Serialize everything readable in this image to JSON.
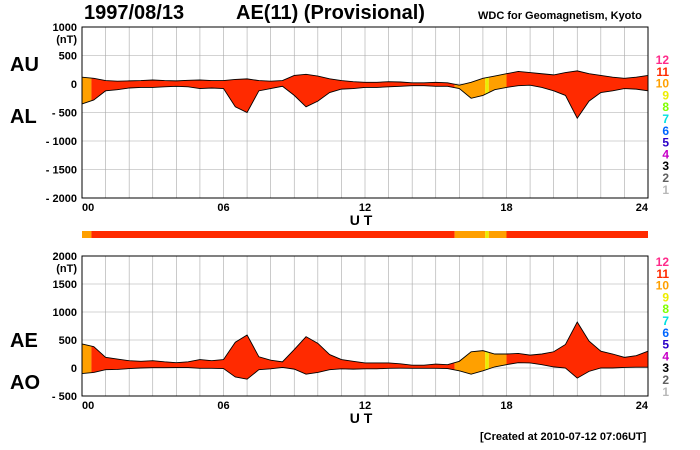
{
  "header": {
    "date": "1997/08/13",
    "title": "AE(11) (Provisional)",
    "source": "WDC for Geomagnetism, Kyoto"
  },
  "footer": {
    "created": "[Created at 2010-07-12 07:06UT]"
  },
  "legend": {
    "levels": [
      "12",
      "11",
      "10",
      "9",
      "8",
      "7",
      "6",
      "5",
      "4",
      "3",
      "2",
      "1"
    ],
    "colors": [
      "#ff2a8a",
      "#ff2a00",
      "#ffa000",
      "#eded00",
      "#80ff00",
      "#00e0e0",
      "#0066ff",
      "#2a00c8",
      "#c800c8",
      "#000000",
      "#606060",
      "#b8b8b8"
    ]
  },
  "station_bar": {
    "segments": [
      {
        "start": 0,
        "end": 0.4,
        "level": "10"
      },
      {
        "start": 0.4,
        "end": 15.8,
        "level": "11"
      },
      {
        "start": 15.8,
        "end": 17.1,
        "level": "10"
      },
      {
        "start": 17.1,
        "end": 17.25,
        "level": "9"
      },
      {
        "start": 17.25,
        "end": 18.0,
        "level": "10"
      },
      {
        "start": 18.0,
        "end": 24,
        "level": "11"
      }
    ]
  },
  "chart_data": [
    {
      "type": "area",
      "panel": "AU/AL",
      "labels_upper": "AU",
      "labels_lower": "AL",
      "xlabel": "U T",
      "xticks": [
        "00",
        "06",
        "12",
        "18",
        "24"
      ],
      "xlim": [
        0,
        24
      ],
      "ylim": [
        -2000,
        1000
      ],
      "yunit": "(nT)",
      "yticks": [
        "1000",
        "500",
        "0",
        "- 500",
        "- 1000",
        "- 1500",
        "- 2000"
      ],
      "ytick_values": [
        1000,
        500,
        0,
        -500,
        -1000,
        -1500,
        -2000
      ],
      "grid": true,
      "fill_segments": [
        {
          "start": 0,
          "end": 0.4,
          "level": "10"
        },
        {
          "start": 0.4,
          "end": 15.8,
          "level": "11"
        },
        {
          "start": 15.8,
          "end": 17.1,
          "level": "10"
        },
        {
          "start": 17.1,
          "end": 17.25,
          "level": "9"
        },
        {
          "start": 17.25,
          "end": 18.0,
          "level": "10"
        },
        {
          "start": 18.0,
          "end": 24,
          "level": "11"
        }
      ],
      "series": [
        {
          "name": "AU",
          "x": [
            0,
            0.5,
            1,
            1.5,
            2,
            2.5,
            3,
            3.5,
            4,
            4.5,
            5,
            5.5,
            6,
            6.5,
            7,
            7.5,
            8,
            8.5,
            9,
            9.5,
            10,
            10.5,
            11,
            11.5,
            12,
            12.5,
            13,
            13.5,
            14,
            14.5,
            15,
            15.5,
            16,
            16.5,
            17,
            17.5,
            18,
            18.5,
            19,
            19.5,
            20,
            20.5,
            21,
            21.5,
            22,
            22.5,
            23,
            23.5,
            24
          ],
          "values": [
            120,
            100,
            60,
            50,
            55,
            60,
            70,
            60,
            55,
            65,
            70,
            60,
            60,
            80,
            90,
            60,
            50,
            60,
            150,
            170,
            140,
            90,
            60,
            40,
            30,
            30,
            40,
            35,
            20,
            20,
            30,
            20,
            -20,
            30,
            100,
            140,
            180,
            220,
            200,
            180,
            160,
            200,
            230,
            180,
            150,
            120,
            100,
            120,
            150
          ]
        },
        {
          "name": "AL",
          "x": [
            0,
            0.5,
            1,
            1.5,
            2,
            2.5,
            3,
            3.5,
            4,
            4.5,
            5,
            5.5,
            6,
            6.5,
            7,
            7.5,
            8,
            8.5,
            9,
            9.5,
            10,
            10.5,
            11,
            11.5,
            12,
            12.5,
            13,
            13.5,
            14,
            14.5,
            15,
            15.5,
            16,
            16.5,
            17,
            17.5,
            18,
            18.5,
            19,
            19.5,
            20,
            20.5,
            21,
            21.5,
            22,
            22.5,
            23,
            23.5,
            24
          ],
          "values": [
            -350,
            -280,
            -120,
            -100,
            -70,
            -60,
            -60,
            -50,
            -40,
            -50,
            -80,
            -70,
            -80,
            -400,
            -500,
            -120,
            -80,
            -40,
            -200,
            -400,
            -300,
            -150,
            -90,
            -80,
            -60,
            -60,
            -50,
            -40,
            -30,
            -30,
            -40,
            -40,
            -80,
            -250,
            -200,
            -100,
            -60,
            -30,
            -20,
            -60,
            -120,
            -200,
            -600,
            -300,
            -150,
            -120,
            -80,
            -90,
            -120
          ]
        }
      ]
    },
    {
      "type": "area",
      "panel": "AE/AO",
      "labels_upper": "AE",
      "labels_lower": "AO",
      "xlabel": "U T",
      "xticks": [
        "00",
        "06",
        "12",
        "18",
        "24"
      ],
      "xlim": [
        0,
        24
      ],
      "ylim": [
        -500,
        2000
      ],
      "yunit": "(nT)",
      "yticks": [
        "2000",
        "1500",
        "1000",
        "500",
        "0",
        "- 500"
      ],
      "ytick_values": [
        2000,
        1500,
        1000,
        500,
        0,
        -500
      ],
      "grid": true,
      "fill_segments": [
        {
          "start": 0,
          "end": 0.4,
          "level": "10"
        },
        {
          "start": 0.4,
          "end": 15.8,
          "level": "11"
        },
        {
          "start": 15.8,
          "end": 17.1,
          "level": "10"
        },
        {
          "start": 17.1,
          "end": 17.25,
          "level": "9"
        },
        {
          "start": 17.25,
          "end": 18.0,
          "level": "10"
        },
        {
          "start": 18.0,
          "end": 24,
          "level": "11"
        }
      ],
      "series": [
        {
          "name": "AE",
          "x": [
            0,
            0.5,
            1,
            1.5,
            2,
            2.5,
            3,
            3.5,
            4,
            4.5,
            5,
            5.5,
            6,
            6.5,
            7,
            7.5,
            8,
            8.5,
            9,
            9.5,
            10,
            10.5,
            11,
            11.5,
            12,
            12.5,
            13,
            13.5,
            14,
            14.5,
            15,
            15.5,
            16,
            16.5,
            17,
            17.5,
            18,
            18.5,
            19,
            19.5,
            20,
            20.5,
            21,
            21.5,
            22,
            22.5,
            23,
            23.5,
            24
          ],
          "values": [
            430,
            380,
            190,
            160,
            130,
            120,
            130,
            110,
            95,
            110,
            150,
            130,
            150,
            460,
            590,
            200,
            140,
            110,
            330,
            560,
            440,
            240,
            150,
            120,
            90,
            90,
            90,
            75,
            50,
            50,
            70,
            60,
            120,
            290,
            310,
            250,
            250,
            260,
            230,
            250,
            290,
            420,
            820,
            480,
            300,
            250,
            190,
            220,
            300
          ]
        },
        {
          "name": "AO",
          "x": [
            0,
            0.5,
            1,
            1.5,
            2,
            2.5,
            3,
            3.5,
            4,
            4.5,
            5,
            5.5,
            6,
            6.5,
            7,
            7.5,
            8,
            8.5,
            9,
            9.5,
            10,
            10.5,
            11,
            11.5,
            12,
            12.5,
            13,
            13.5,
            14,
            14.5,
            15,
            15.5,
            16,
            16.5,
            17,
            17.5,
            18,
            18.5,
            19,
            19.5,
            20,
            20.5,
            21,
            21.5,
            22,
            22.5,
            23,
            23.5,
            24
          ],
          "values": [
            -100,
            -80,
            -30,
            -25,
            -10,
            0,
            5,
            5,
            8,
            8,
            -5,
            -5,
            -10,
            -160,
            -200,
            -30,
            -15,
            10,
            -20,
            -110,
            -80,
            -30,
            -15,
            -20,
            -15,
            -15,
            -5,
            -3,
            -5,
            -5,
            -5,
            -10,
            -50,
            -110,
            -50,
            20,
            60,
            95,
            90,
            60,
            20,
            0,
            -180,
            -60,
            0,
            0,
            10,
            15,
            15
          ]
        }
      ]
    }
  ]
}
